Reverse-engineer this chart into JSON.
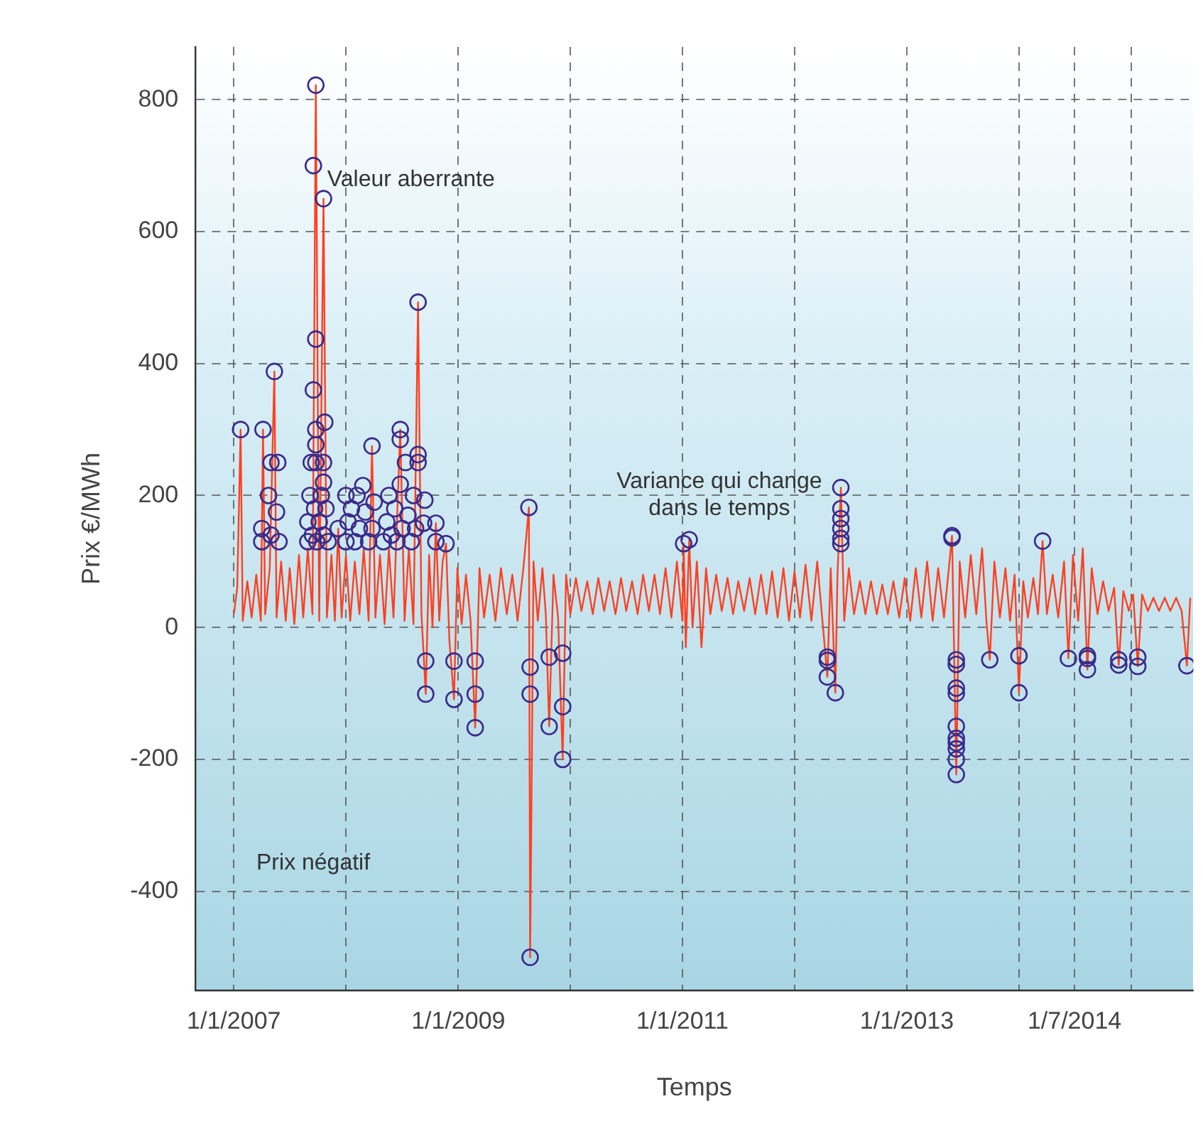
{
  "chart_data": {
    "type": "line",
    "xlabel": "Temps",
    "ylabel": "Prix €/MWh",
    "xlim": [
      "2006-08-29",
      "2015-07-23"
    ],
    "ylim": [
      -550,
      880
    ],
    "xticks": [
      {
        "value": "2007-01-01",
        "label": "1/1/2007"
      },
      {
        "value": "2008-01-01",
        "label": null
      },
      {
        "value": "2009-01-01",
        "label": "1/1/2009"
      },
      {
        "value": "2010-01-01",
        "label": null
      },
      {
        "value": "2011-01-01",
        "label": "1/1/2011"
      },
      {
        "value": "2012-01-01",
        "label": null
      },
      {
        "value": "2013-01-01",
        "label": "1/1/2013"
      },
      {
        "value": "2014-01-01",
        "label": null
      },
      {
        "value": "2014-07-01",
        "label": "1/7/2014"
      },
      {
        "value": "2015-01-01",
        "label": null
      }
    ],
    "yticks": [
      -400,
      -200,
      0,
      200,
      400,
      600,
      800
    ],
    "grid": true,
    "annotations": [
      "Valeur aberrante",
      "Variance qui change dans le temps",
      "Prix négatif"
    ],
    "series": [
      {
        "color": "#ff4020",
        "marker": "none",
        "line_style": "solid",
        "x": [
          "2007-01-01",
          "2007-01-12",
          "2007-01-23",
          "2007-01-30",
          "2007-02-14",
          "2007-02-28",
          "2007-03-15",
          "2007-03-30",
          "2007-04-06",
          "2007-04-13",
          "2007-04-28",
          "2007-05-13",
          "2007-05-20",
          "2007-06-04",
          "2007-06-19",
          "2007-07-02",
          "2007-07-17",
          "2007-08-01",
          "2007-08-15",
          "2007-08-30",
          "2007-09-14",
          "2007-09-25",
          "2007-10-06",
          "2007-10-20",
          "2007-10-31",
          "2007-11-15",
          "2007-11-26",
          "2007-12-07",
          "2007-12-18",
          "2008-01-01",
          "2008-01-15",
          "2008-01-30",
          "2008-02-14",
          "2008-02-28",
          "2008-03-15",
          "2008-03-26",
          "2008-04-06",
          "2008-04-21",
          "2008-05-06",
          "2008-05-20",
          "2008-06-04",
          "2008-06-26",
          "2008-07-10",
          "2008-07-24",
          "2008-08-08",
          "2008-08-23",
          "2008-09-03",
          "2008-09-17",
          "2008-09-28",
          "2008-10-09",
          "2008-10-20",
          "2008-10-31",
          "2008-11-11",
          "2008-11-22",
          "2008-12-03",
          "2008-12-18",
          "2008-12-29",
          "2009-01-12",
          "2009-01-26",
          "2009-02-10",
          "2009-02-25",
          "2009-03-11",
          "2009-03-26",
          "2009-04-13",
          "2009-05-02",
          "2009-05-20",
          "2009-06-08",
          "2009-06-26",
          "2009-07-13",
          "2009-08-01",
          "2009-08-19",
          "2009-08-23",
          "2009-09-03",
          "2009-09-17",
          "2009-10-02",
          "2009-10-13",
          "2009-10-24",
          "2009-11-07",
          "2009-11-22",
          "2009-12-07",
          "2009-12-18",
          "2010-01-01",
          "2010-01-19",
          "2010-02-06",
          "2010-02-25",
          "2010-03-15",
          "2010-04-02",
          "2010-04-21",
          "2010-05-09",
          "2010-05-28",
          "2010-06-15",
          "2010-07-02",
          "2010-07-21",
          "2010-08-08",
          "2010-08-26",
          "2010-09-14",
          "2010-10-02",
          "2010-10-20",
          "2010-11-07",
          "2010-11-26",
          "2010-12-14",
          "2011-01-01",
          "2011-01-05",
          "2011-01-12",
          "2011-01-23",
          "2011-02-03",
          "2011-02-17",
          "2011-03-04",
          "2011-03-19",
          "2011-04-02",
          "2011-04-21",
          "2011-05-09",
          "2011-05-28",
          "2011-06-15",
          "2011-07-02",
          "2011-07-21",
          "2011-08-08",
          "2011-08-26",
          "2011-09-14",
          "2011-10-02",
          "2011-10-20",
          "2011-11-07",
          "2011-11-26",
          "2011-12-14",
          "2012-01-01",
          "2012-01-19",
          "2012-02-06",
          "2012-02-25",
          "2012-03-15",
          "2012-04-02",
          "2012-04-17",
          "2012-04-28",
          "2012-05-13",
          "2012-05-20",
          "2012-05-31",
          "2012-06-11",
          "2012-06-26",
          "2012-07-13",
          "2012-08-01",
          "2012-08-19",
          "2012-09-06",
          "2012-09-25",
          "2012-10-13",
          "2012-10-31",
          "2012-11-18",
          "2012-12-07",
          "2012-12-25",
          "2013-01-12",
          "2013-01-30",
          "2013-02-17",
          "2013-03-08",
          "2013-03-26",
          "2013-04-13",
          "2013-05-02",
          "2013-05-28",
          "2013-06-11",
          "2013-06-22",
          "2013-07-10",
          "2013-07-28",
          "2013-08-15",
          "2013-09-03",
          "2013-09-17",
          "2013-09-28",
          "2013-10-13",
          "2013-10-31",
          "2013-11-18",
          "2013-12-03",
          "2013-12-18",
          "2014-01-01",
          "2014-01-15",
          "2014-01-30",
          "2014-02-17",
          "2014-03-04",
          "2014-03-19",
          "2014-04-02",
          "2014-04-21",
          "2014-05-09",
          "2014-05-28",
          "2014-06-11",
          "2014-06-26",
          "2014-07-13",
          "2014-07-28",
          "2014-08-12",
          "2014-08-26",
          "2014-09-14",
          "2014-10-02",
          "2014-10-20",
          "2014-11-07",
          "2014-11-22",
          "2014-12-07",
          "2014-12-25",
          "2015-01-08",
          "2015-01-23",
          "2015-02-06",
          "2015-02-25",
          "2015-03-15",
          "2015-04-02",
          "2015-04-21",
          "2015-05-09",
          "2015-05-28",
          "2015-06-15",
          "2015-07-02",
          "2015-07-13"
        ],
        "values": [
          20,
          60,
          300,
          10,
          70,
          15,
          80,
          10,
          300,
          20,
          90,
          388,
          15,
          100,
          10,
          90,
          5,
          110,
          15,
          120,
          20,
          822,
          10,
          650,
          15,
          110,
          10,
          150,
          15,
          110,
          10,
          100,
          20,
          120,
          10,
          275,
          15,
          110,
          5,
          120,
          15,
          300,
          10,
          120,
          5,
          493,
          20,
          -101,
          110,
          0,
          158,
          10,
          100,
          127,
          -20,
          -109,
          90,
          5,
          80,
          10,
          -152,
          90,
          15,
          80,
          10,
          90,
          20,
          80,
          10,
          90,
          182,
          -500,
          100,
          10,
          90,
          20,
          -150,
          80,
          15,
          -200,
          80,
          20,
          75,
          25,
          70,
          20,
          75,
          25,
          70,
          20,
          75,
          25,
          70,
          20,
          80,
          25,
          80,
          20,
          90,
          15,
          100,
          10,
          127,
          -30,
          133,
          0,
          100,
          -30,
          90,
          20,
          80,
          25,
          75,
          20,
          70,
          25,
          75,
          20,
          80,
          20,
          85,
          15,
          90,
          10,
          85,
          15,
          95,
          10,
          100,
          5,
          -75,
          90,
          -99,
          80,
          212,
          10,
          90,
          20,
          70,
          20,
          70,
          20,
          65,
          20,
          70,
          15,
          75,
          10,
          90,
          15,
          100,
          10,
          90,
          15,
          139,
          -223,
          100,
          15,
          110,
          20,
          120,
          10,
          -49,
          100,
          15,
          90,
          10,
          80,
          -99,
          70,
          15,
          75,
          20,
          131,
          20,
          80,
          15,
          100,
          -47,
          110,
          10,
          120,
          -64,
          90,
          20,
          70,
          25,
          60,
          -57,
          55,
          25,
          50,
          -59,
          50,
          25,
          45,
          25,
          45,
          25,
          45,
          25,
          -58,
          45
        ]
      },
      {
        "type": "scatter",
        "color": "#3a2a8a",
        "marker": "circle",
        "x": [
          "2007-01-23",
          "2007-04-06",
          "2007-05-13",
          "2007-05-02",
          "2007-05-24",
          "2007-04-24",
          "2007-04-02",
          "2007-04-02",
          "2007-05-02",
          "2007-05-20",
          "2007-05-28",
          "2007-09-25",
          "2007-09-17",
          "2007-10-20",
          "2007-09-25",
          "2007-09-17",
          "2007-10-24",
          "2007-09-25",
          "2007-09-25",
          "2007-09-25",
          "2007-09-10",
          "2007-10-20",
          "2007-08-30",
          "2007-08-30",
          "2007-09-06",
          "2007-09-14",
          "2007-09-21",
          "2007-09-28",
          "2007-10-06",
          "2007-10-13",
          "2007-10-20",
          "2007-10-28",
          "2007-11-04",
          "2007-10-20",
          "2007-12-07",
          "2008-01-01",
          "2008-01-01",
          "2008-01-08",
          "2008-01-19",
          "2008-01-30",
          "2008-02-06",
          "2008-02-14",
          "2008-02-25",
          "2008-03-04",
          "2008-03-15",
          "2008-03-26",
          "2008-03-26",
          "2008-04-02",
          "2008-05-02",
          "2008-05-13",
          "2008-05-20",
          "2008-05-28",
          "2008-06-08",
          "2008-06-15",
          "2008-06-26",
          "2008-06-26",
          "2008-06-26",
          "2008-07-02",
          "2008-07-13",
          "2008-07-21",
          "2008-08-01",
          "2008-08-08",
          "2008-08-15",
          "2008-08-23",
          "2008-08-23",
          "2008-08-23",
          "2008-09-14",
          "2008-09-10",
          "2008-10-20",
          "2008-10-20",
          "2008-11-22",
          "2008-09-17",
          "2008-09-17",
          "2008-12-18",
          "2008-12-18",
          "2009-02-25",
          "2009-02-25",
          "2009-02-25",
          "2009-08-19",
          "2009-08-23",
          "2009-08-23",
          "2009-08-23",
          "2009-10-24",
          "2009-10-24",
          "2009-12-07",
          "2009-12-07",
          "2009-12-07",
          "2011-01-05",
          "2011-01-23",
          "2012-04-17",
          "2012-04-17",
          "2012-04-17",
          "2012-05-13",
          "2012-05-31",
          "2012-05-31",
          "2012-05-31",
          "2012-05-31",
          "2012-05-31",
          "2012-05-31",
          "2013-05-28",
          "2013-05-28",
          "2013-06-11",
          "2013-06-11",
          "2013-06-11",
          "2013-06-11",
          "2013-06-11",
          "2013-06-11",
          "2013-06-11",
          "2013-06-11",
          "2013-06-11",
          "2013-06-11",
          "2013-09-28",
          "2014-01-01",
          "2014-01-01",
          "2014-03-19",
          "2014-06-11",
          "2014-08-12",
          "2014-08-12",
          "2014-08-12",
          "2014-11-22",
          "2014-11-22",
          "2015-01-23",
          "2015-01-23",
          "2015-07-02"
        ],
        "values": [
          300,
          300,
          388,
          250,
          250,
          200,
          150,
          130,
          140,
          175,
          130,
          822,
          700,
          650,
          437,
          360,
          311,
          300,
          277,
          250,
          250,
          250,
          130,
          160,
          200,
          140,
          180,
          130,
          160,
          200,
          140,
          180,
          130,
          220,
          150,
          200,
          130,
          160,
          180,
          130,
          200,
          150,
          215,
          175,
          130,
          275,
          150,
          190,
          130,
          160,
          200,
          140,
          180,
          130,
          300,
          285,
          217,
          150,
          250,
          170,
          130,
          200,
          150,
          493,
          262,
          250,
          193,
          158,
          158,
          130,
          127,
          -51,
          -101,
          -51,
          -109,
          -51,
          -101,
          -152,
          182,
          -60,
          -101,
          -500,
          -45,
          -150,
          -39,
          -120,
          -200,
          127,
          133,
          -45,
          -50,
          -75,
          -99,
          212,
          180,
          165,
          150,
          135,
          127,
          139,
          136,
          -49,
          -56,
          -92,
          -100,
          -150,
          -168,
          -175,
          -184,
          -200,
          -223,
          -49,
          -43,
          -99,
          131,
          -47,
          -43,
          -47,
          -64,
          -49,
          -57,
          -45,
          -59,
          -58
        ]
      }
    ]
  }
}
